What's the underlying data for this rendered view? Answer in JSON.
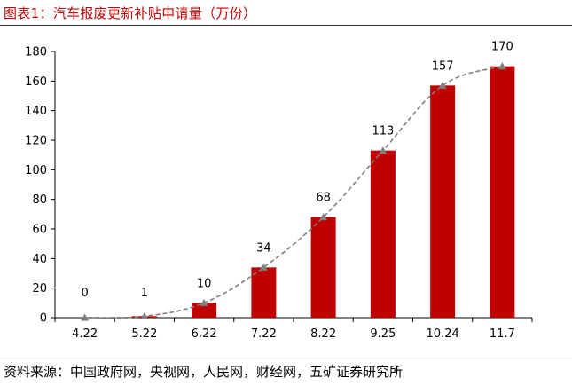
{
  "title": "图表1：汽车报废更新补贴申请量（万份）",
  "source": "资料来源：中国政府网，央视网，人民网，财经网，五矿证券研究所",
  "colors": {
    "bar": "#c00000",
    "trend": "#7f7f7f",
    "title": "#c00000",
    "axis": "#000000"
  },
  "chart_data": {
    "type": "bar",
    "categories": [
      "4.22",
      "5.22",
      "6.22",
      "7.22",
      "8.22",
      "9.25",
      "10.24",
      "11.7"
    ],
    "values": [
      0,
      1,
      10,
      34,
      68,
      113,
      157,
      170
    ],
    "data_labels": [
      "0",
      "1",
      "10",
      "34",
      "68",
      "113",
      "157",
      "170"
    ],
    "ylim": [
      0,
      180
    ],
    "yticks": [
      0,
      20,
      40,
      60,
      80,
      100,
      120,
      140,
      160,
      180
    ],
    "trendline": "dashed-with-triangle-markers",
    "grid": false,
    "legend": "none"
  }
}
